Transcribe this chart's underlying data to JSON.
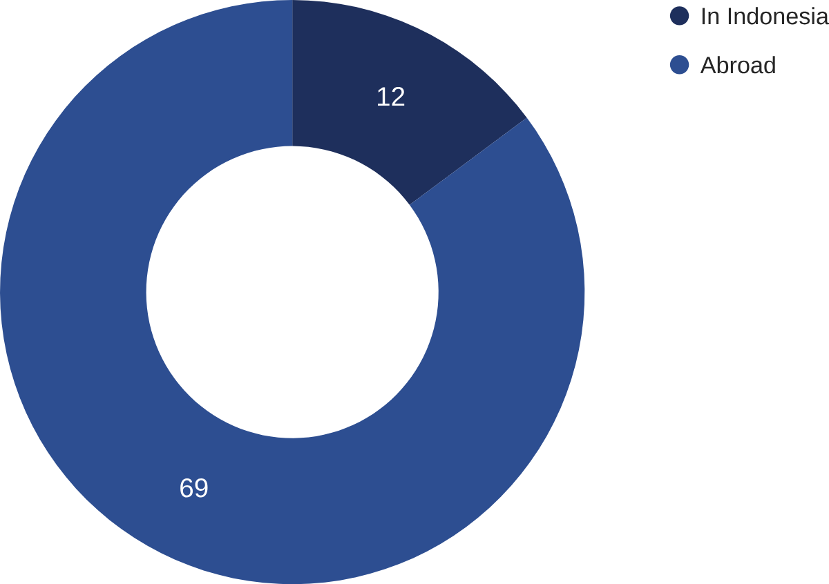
{
  "chart_data": {
    "type": "donut",
    "categories": [
      "In Indonesia",
      "Abroad"
    ],
    "values": [
      12,
      69
    ],
    "colors": [
      "#1e2f5c",
      "#2d4e91"
    ],
    "data_labels": true,
    "legend": "top right"
  }
}
